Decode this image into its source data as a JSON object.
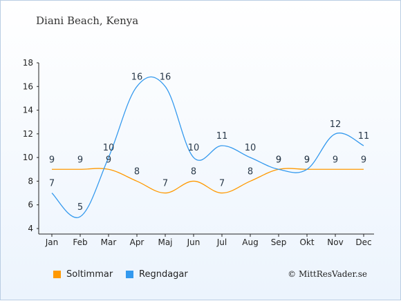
{
  "chart_data": {
    "type": "line",
    "title": "Diani Beach, Kenya",
    "categories": [
      "Jan",
      "Feb",
      "Mar",
      "Apr",
      "Maj",
      "Jun",
      "Jul",
      "Aug",
      "Sep",
      "Okt",
      "Nov",
      "Dec"
    ],
    "series": [
      {
        "name": "Soltimmar",
        "color": "#ff9900",
        "values": [
          9,
          9,
          9,
          8,
          7,
          8,
          7,
          8,
          9,
          9,
          9,
          9
        ]
      },
      {
        "name": "Regndagar",
        "color": "#3399ee",
        "values": [
          7,
          5,
          10,
          16,
          16,
          10,
          11,
          10,
          9,
          9,
          12,
          11
        ]
      }
    ],
    "ylim": [
      4,
      18
    ],
    "yticks": [
      4,
      6,
      8,
      10,
      12,
      14,
      16,
      18
    ],
    "grid": false,
    "legend_position": "bottom-left"
  },
  "footer": {
    "copyright": "© MittResVader.se"
  }
}
